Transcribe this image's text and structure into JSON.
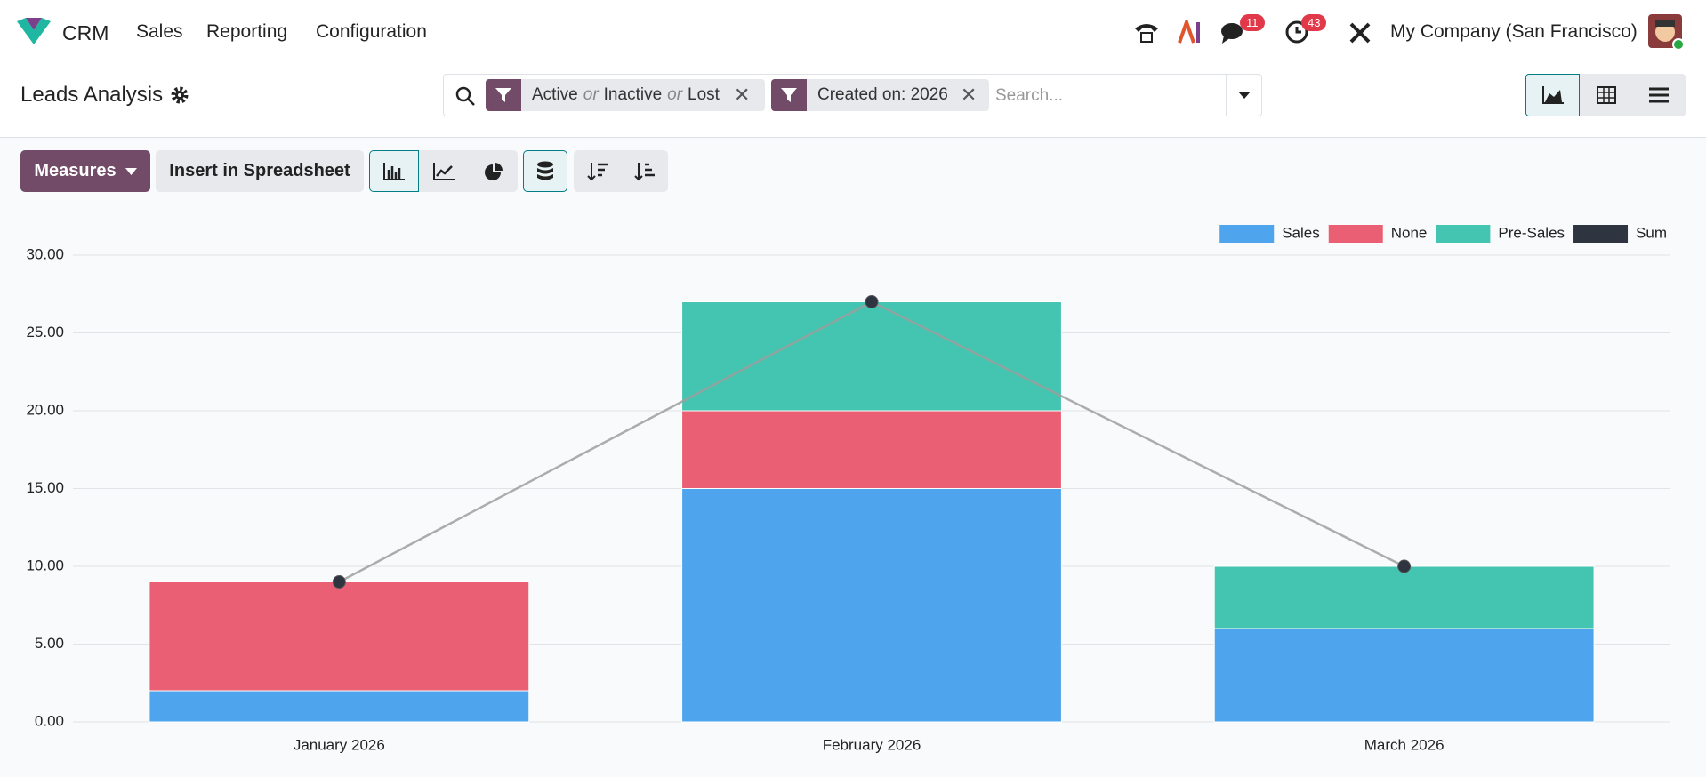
{
  "navbar": {
    "app": "CRM",
    "menus": [
      "Sales",
      "Reporting",
      "Configuration"
    ],
    "badges": [
      11,
      43
    ],
    "company": "My Company (San Francisco)"
  },
  "control_panel": {
    "title": "Leads Analysis",
    "facets": [
      {
        "values": [
          "Active",
          "Inactive",
          "Lost"
        ],
        "separator": "or"
      },
      {
        "values": [
          "Created on: 2026"
        ]
      }
    ],
    "search_placeholder": "Search...",
    "buttons": [
      "Measures",
      "Insert in Spreadsheet"
    ]
  },
  "chart_data": {
    "type": "bar",
    "stacked": true,
    "categories": [
      "January 2026",
      "February 2026",
      "March 2026"
    ],
    "series": [
      {
        "name": "Sales",
        "color": "#4ea5ee",
        "values": [
          2,
          15,
          6
        ]
      },
      {
        "name": "None",
        "color": "#ea5f73",
        "values": [
          7,
          5,
          0
        ]
      },
      {
        "name": "Pre-Sales",
        "color": "#43c5b1",
        "values": [
          0,
          7,
          4
        ]
      },
      {
        "name": "Sum",
        "color": "#2f3441",
        "type": "line",
        "values": [
          9,
          27,
          10
        ]
      }
    ],
    "ylim": [
      0,
      30
    ],
    "yticks": [
      {
        "value": 0,
        "label": "0.00"
      },
      {
        "value": 5,
        "label": "5.00"
      },
      {
        "value": 10,
        "label": "10.00"
      },
      {
        "value": 15,
        "label": "15.00"
      },
      {
        "value": 20,
        "label": "20.00"
      },
      {
        "value": 25,
        "label": "25.00"
      },
      {
        "value": 30,
        "label": "30.00"
      }
    ],
    "grid": true,
    "legend": "top-right"
  }
}
